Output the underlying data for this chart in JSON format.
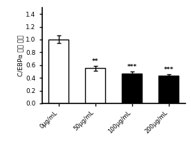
{
  "categories": [
    "0μg/mL",
    "50μg/mL",
    "100μg/mL",
    "200μg/mL"
  ],
  "values": [
    1.0,
    0.55,
    0.47,
    0.43
  ],
  "errors": [
    0.06,
    0.04,
    0.03,
    0.03
  ],
  "bar_colors": [
    "white",
    "white",
    "black",
    "black"
  ],
  "bar_edgecolors": [
    "black",
    "black",
    "black",
    "black"
  ],
  "significance": [
    "",
    "**",
    "***",
    "***"
  ],
  "ylabel_line1": "C/EBPα 相对 表达",
  "ylim": [
    0,
    1.5
  ],
  "yticks": [
    0.0,
    0.2,
    0.4,
    0.6,
    0.8,
    1.0,
    1.2,
    1.4
  ],
  "title": "",
  "bar_width": 0.55,
  "figure_facecolor": "white",
  "sig_fontsize": 6.5,
  "tick_fontsize": 6.5,
  "ylabel_fontsize": 6.5,
  "xtick_fontsize": 6.0
}
